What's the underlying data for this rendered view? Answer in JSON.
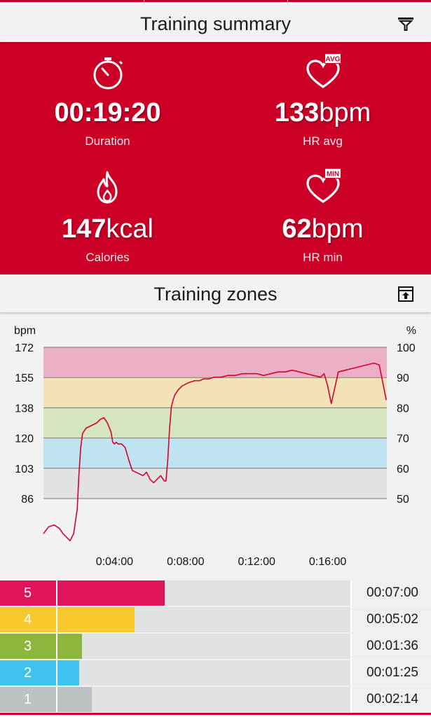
{
  "summary_header": {
    "title": "Training summary",
    "icon": "filter-icon"
  },
  "stats": {
    "duration": {
      "value": "00:19:20",
      "unit": "",
      "label": "Duration",
      "icon": "stopwatch-icon"
    },
    "hr_avg": {
      "value": "133",
      "unit": "bpm",
      "label": "HR avg",
      "icon": "heart-avg-icon",
      "badge": "AVG"
    },
    "calories": {
      "value": "147",
      "unit": "kcal",
      "label": "Calories",
      "icon": "flame-icon"
    },
    "hr_min": {
      "value": "62",
      "unit": "bpm",
      "label": "HR min",
      "icon": "heart-min-icon",
      "badge": "MIN"
    }
  },
  "zones_header": {
    "title": "Training zones",
    "icon": "export-icon"
  },
  "colors": {
    "brand_red": "#cc0027",
    "zone5": "#e0145a",
    "zone4": "#f8c92c",
    "zone3": "#8fb63c",
    "zone2": "#3fc2ee",
    "zone1": "#bdc3c3"
  },
  "chart_data": {
    "type": "line",
    "ylabel_left": "bpm",
    "ylabel_right": "%",
    "y_ticks_left": [
      "172",
      "155",
      "138",
      "120",
      "103",
      "86"
    ],
    "y_ticks_right": [
      "100",
      "90",
      "80",
      "70",
      "60",
      "50"
    ],
    "ylim": [
      86,
      172
    ],
    "x_tick_labels": [
      "0:04:00",
      "0:08:00",
      "0:12:00",
      "0:16:00"
    ],
    "x_ticks_min": [
      4,
      8,
      12,
      16
    ],
    "xlim_min": [
      0,
      19.33
    ],
    "zone_bands": [
      {
        "zone": 5,
        "from": 155,
        "to": 172,
        "color": "#ebb0c6"
      },
      {
        "zone": 4,
        "from": 138,
        "to": 155,
        "color": "#f3e2b8"
      },
      {
        "zone": 3,
        "from": 120,
        "to": 138,
        "color": "#d7e4c0"
      },
      {
        "zone": 2,
        "from": 103,
        "to": 120,
        "color": "#bfe3f0"
      },
      {
        "zone": 1,
        "from": 86,
        "to": 103,
        "color": "#e2e2e2"
      }
    ],
    "series": [
      {
        "color": "#d4002f",
        "x": [
          0,
          0.3,
          0.6,
          0.9,
          1.1,
          1.3,
          1.5,
          1.7,
          1.9,
          2.0,
          2.1,
          2.2,
          2.4,
          2.6,
          2.8,
          3.0,
          3.2,
          3.4,
          3.6,
          3.8,
          3.9,
          4.0,
          4.1,
          4.2,
          4.4,
          4.6,
          4.8,
          5.0,
          5.2,
          5.4,
          5.6,
          5.8,
          6.0,
          6.2,
          6.4,
          6.6,
          6.8,
          6.9,
          7.0,
          7.1,
          7.2,
          7.3,
          7.4,
          7.6,
          7.8,
          8.0,
          8.2,
          8.5,
          8.8,
          9.0,
          9.3,
          9.6,
          10.0,
          10.4,
          10.8,
          11.2,
          11.6,
          12.0,
          12.4,
          12.8,
          13.2,
          13.6,
          14.0,
          14.4,
          14.8,
          15.2,
          15.6,
          15.8,
          16.0,
          16.2,
          16.6,
          17.0,
          17.4,
          17.8,
          18.2,
          18.6,
          18.9,
          19.1,
          19.3
        ],
        "y": [
          66,
          70,
          71,
          69,
          66,
          64,
          62,
          66,
          80,
          100,
          115,
          123,
          126,
          127,
          128,
          129,
          131,
          132,
          129,
          124,
          118,
          117,
          118,
          117,
          117,
          115,
          108,
          102,
          101,
          100,
          99,
          101,
          97,
          95,
          97,
          99,
          96,
          96,
          108,
          126,
          138,
          142,
          145,
          148,
          150,
          151,
          152,
          153,
          153,
          154,
          154,
          155,
          155,
          156,
          156,
          157,
          157,
          157,
          156,
          157,
          158,
          158,
          159,
          158,
          157,
          156,
          155,
          157,
          150,
          140,
          158,
          159,
          160,
          161,
          162,
          163,
          162,
          152,
          142
        ]
      }
    ]
  },
  "zones": [
    {
      "number": "5",
      "time": "00:07:00",
      "fraction": 0.365,
      "color": "#e0145a"
    },
    {
      "number": "4",
      "time": "00:05:02",
      "fraction": 0.263,
      "color": "#f8c92c"
    },
    {
      "number": "3",
      "time": "00:01:36",
      "fraction": 0.084,
      "color": "#8fb63c"
    },
    {
      "number": "2",
      "time": "00:01:25",
      "fraction": 0.074,
      "color": "#3fc2ee"
    },
    {
      "number": "1",
      "time": "00:02:14",
      "fraction": 0.117,
      "color": "#bdc3c3"
    }
  ]
}
